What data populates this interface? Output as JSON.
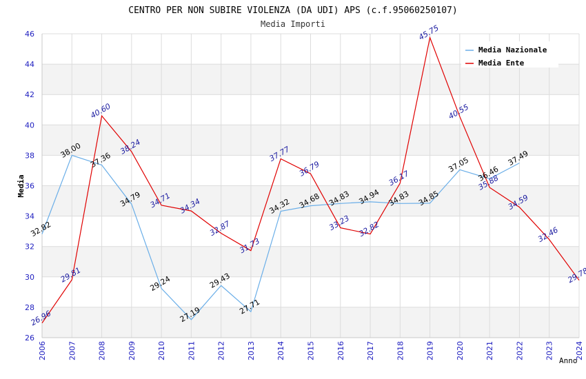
{
  "chart_data": {
    "type": "line",
    "title": "CENTRO PER NON SUBIRE VIOLENZA (DA UDI) APS (c.f.95060250107)",
    "subtitle": "Media Importi",
    "xlabel": "Anno",
    "ylabel": "Media",
    "ylim": [
      26,
      46
    ],
    "yticks": [
      "26",
      "28",
      "30",
      "32",
      "34",
      "36",
      "38",
      "40",
      "42",
      "44",
      "46"
    ],
    "categories": [
      "2006",
      "2007",
      "2008",
      "2009",
      "2010",
      "2011",
      "2012",
      "2013",
      "2014",
      "2015",
      "2016",
      "2017",
      "2018",
      "2019",
      "2020",
      "2021",
      "2022",
      "2023",
      "2024"
    ],
    "grid": true,
    "legend_position": "top-right",
    "series": [
      {
        "name": "Media Nazionale",
        "color": "#6aaee8",
        "label_color": "#000000",
        "values": [
          32.82,
          38.0,
          37.36,
          34.79,
          29.24,
          27.19,
          29.43,
          27.71,
          34.32,
          34.68,
          34.83,
          34.94,
          34.83,
          34.85,
          37.05,
          36.46,
          37.49,
          null,
          null
        ],
        "labels": [
          "32.82",
          "38.00",
          "37.36",
          "34.79",
          "29.24",
          "27.19",
          "29.43",
          "27.71",
          "34.32",
          "34.68",
          "34.83",
          "34.94",
          "34.83",
          "34.85",
          "37.05",
          "36.46",
          "37.49",
          null,
          null
        ]
      },
      {
        "name": "Media Ente",
        "color": "#e00000",
        "label_color": "#1a1aa0",
        "values": [
          26.96,
          29.81,
          40.6,
          38.24,
          34.71,
          34.34,
          32.87,
          31.73,
          37.77,
          36.79,
          33.23,
          32.82,
          36.17,
          45.75,
          40.55,
          35.88,
          34.59,
          32.46,
          29.78
        ],
        "labels": [
          "26.96",
          "29.81",
          "40.60",
          "38.24",
          "34.71",
          "34.34",
          "32.87",
          "31.73",
          "37.77",
          "36.79",
          "33.23",
          "32.82",
          "36.17",
          "45.75",
          "40.55",
          "35.88",
          "34.59",
          "32.46",
          "29.78"
        ]
      }
    ]
  }
}
